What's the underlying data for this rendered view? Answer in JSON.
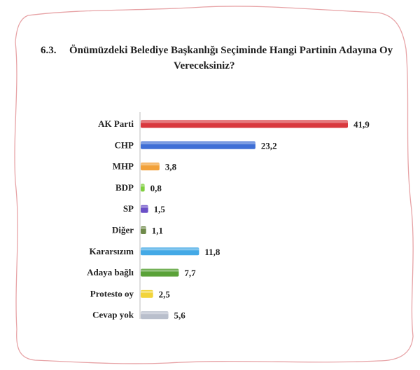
{
  "heading": {
    "number": "6.3.",
    "line1": "Önümüzdeki Belediye Başkanlığı Seçiminde Hangi Partinin Adayına Oy",
    "line2": "Vereceksiniz?"
  },
  "chart_data": {
    "type": "bar",
    "orientation": "horizontal",
    "categories": [
      "AK Parti",
      "CHP",
      "MHP",
      "BDP",
      "SP",
      "Diğer",
      "Kararsızım",
      "Adaya bağlı",
      "Protesto oy",
      "Cevap yok"
    ],
    "values": [
      41.9,
      23.2,
      3.8,
      0.8,
      1.5,
      1.1,
      11.8,
      7.7,
      2.5,
      5.6
    ],
    "value_labels": [
      "41,9",
      "23,2",
      "3,8",
      "0,8",
      "1,5",
      "1,1",
      "11,8",
      "7,7",
      "2,5",
      "5,6"
    ],
    "colors": [
      "#d9383e",
      "#3f6fd6",
      "#f2a13a",
      "#7fcf3e",
      "#6a4fc7",
      "#6f8a4a",
      "#44a9e6",
      "#5aa238",
      "#f2d43a",
      "#b9bfcc"
    ],
    "title": "",
    "xlabel": "",
    "ylabel": "",
    "xlim": [
      0,
      41.9
    ],
    "grid": false,
    "legend": "none"
  }
}
